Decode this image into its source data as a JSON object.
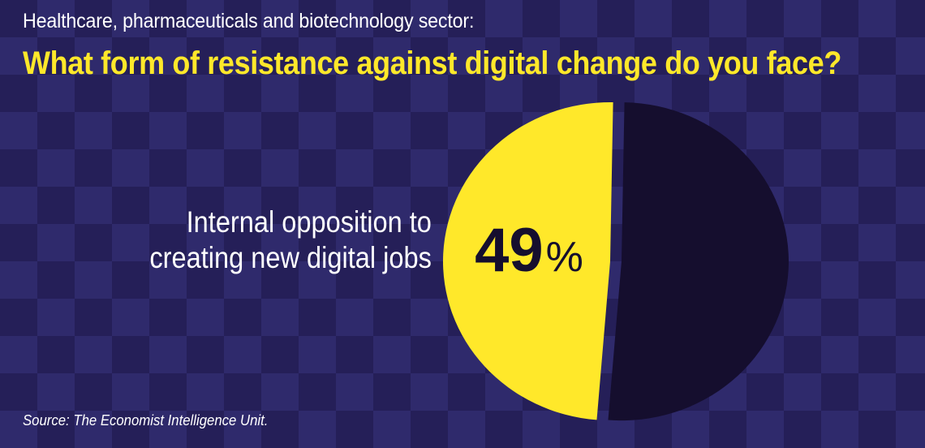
{
  "subtitle": "Healthcare, pharmaceuticals and biotechnology sector:",
  "title": "What form of resistance against digital change do you face?",
  "source": "Source: The Economist Intelligence Unit.",
  "colors": {
    "background": "#2a2562",
    "highlight_slice": "#ffe82a",
    "other_slice": "#150e2e",
    "subtitle_text": "#ffffff",
    "title_text": "#ffe82a"
  },
  "chart_data": {
    "type": "pie",
    "slices": [
      {
        "label_lines": [
          "Internal opposition to",
          "creating new digital jobs"
        ],
        "value": 49,
        "display": "49",
        "unit": "%",
        "color": "#ffe82a"
      },
      {
        "label_lines": [],
        "value": 51,
        "display": "",
        "unit": "",
        "color": "#150e2e"
      }
    ]
  }
}
